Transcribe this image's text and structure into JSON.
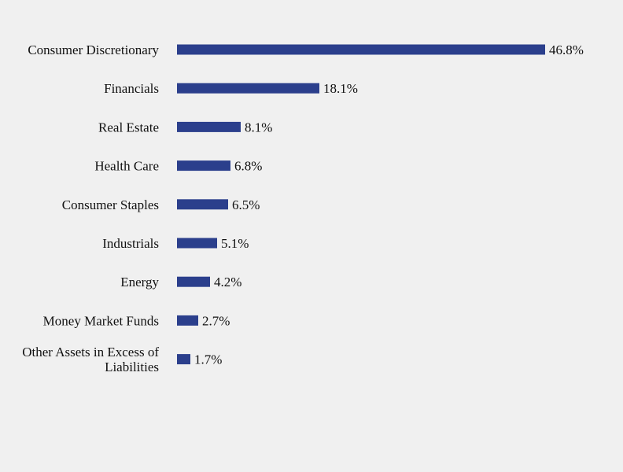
{
  "chart_data": {
    "type": "bar",
    "orientation": "horizontal",
    "categories": [
      "Consumer Discretionary",
      "Financials",
      "Real Estate",
      "Health Care",
      "Consumer Staples",
      "Industrials",
      "Energy",
      "Money Market Funds",
      "Other Assets in Excess of Liabilities"
    ],
    "values": [
      46.8,
      18.1,
      8.1,
      6.8,
      6.5,
      5.1,
      4.2,
      2.7,
      1.7
    ],
    "value_labels": [
      "46.8%",
      "18.1%",
      "8.1%",
      "6.8%",
      "6.5%",
      "5.1%",
      "4.2%",
      "2.7%",
      "1.7%"
    ],
    "unit": "%",
    "title": "",
    "xlabel": "",
    "ylabel": "",
    "xlim": [
      0,
      46.8
    ],
    "grid": false,
    "legend": "none",
    "bar_color": "#2b3f8c"
  }
}
